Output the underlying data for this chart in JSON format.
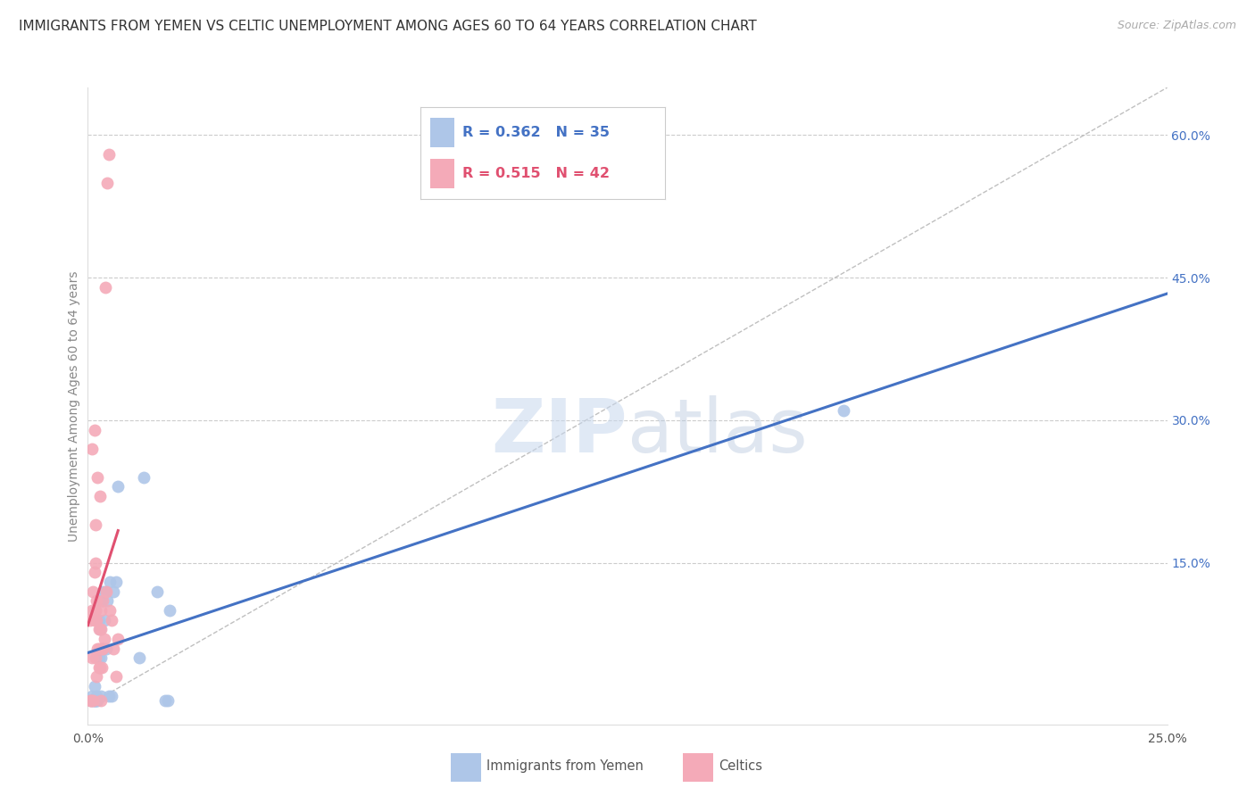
{
  "title": "IMMIGRANTS FROM YEMEN VS CELTIC UNEMPLOYMENT AMONG AGES 60 TO 64 YEARS CORRELATION CHART",
  "source": "Source: ZipAtlas.com",
  "ylabel": "Unemployment Among Ages 60 to 64 years",
  "xlim": [
    0.0,
    0.25
  ],
  "ylim": [
    -0.02,
    0.65
  ],
  "xticks": [
    0.0,
    0.05,
    0.1,
    0.15,
    0.2,
    0.25
  ],
  "xtick_labels": [
    "0.0%",
    "",
    "",
    "",
    "",
    "25.0%"
  ],
  "yticks_right": [
    0.15,
    0.3,
    0.45,
    0.6
  ],
  "ytick_labels_right": [
    "15.0%",
    "30.0%",
    "45.0%",
    "60.0%"
  ],
  "blue_color": "#aec6e8",
  "pink_color": "#f4aab8",
  "blue_line_color": "#4472c4",
  "pink_line_color": "#e05070",
  "blue_R": 0.362,
  "blue_N": 35,
  "pink_R": 0.515,
  "pink_N": 42,
  "legend_label_blue": "Immigrants from Yemen",
  "legend_label_pink": "Celtics",
  "blue_x": [
    0.0008,
    0.001,
    0.0012,
    0.0015,
    0.0015,
    0.0016,
    0.0018,
    0.002,
    0.002,
    0.0022,
    0.0025,
    0.0025,
    0.0028,
    0.003,
    0.003,
    0.0032,
    0.0035,
    0.0035,
    0.0038,
    0.004,
    0.0042,
    0.0045,
    0.0048,
    0.005,
    0.0055,
    0.006,
    0.0065,
    0.007,
    0.012,
    0.013,
    0.016,
    0.018,
    0.0185,
    0.019,
    0.175
  ],
  "blue_y": [
    0.005,
    0.01,
    0.005,
    0.02,
    0.005,
    0.005,
    0.005,
    0.01,
    0.005,
    0.005,
    0.05,
    0.09,
    0.08,
    0.01,
    0.05,
    0.11,
    0.06,
    0.12,
    0.09,
    0.12,
    0.06,
    0.11,
    0.01,
    0.13,
    0.01,
    0.12,
    0.13,
    0.23,
    0.05,
    0.24,
    0.12,
    0.005,
    0.005,
    0.1,
    0.31
  ],
  "pink_x": [
    0.0005,
    0.0005,
    0.0008,
    0.001,
    0.001,
    0.001,
    0.0012,
    0.0012,
    0.0015,
    0.0015,
    0.0015,
    0.0018,
    0.0018,
    0.0018,
    0.0018,
    0.002,
    0.002,
    0.002,
    0.0022,
    0.0022,
    0.0025,
    0.0025,
    0.0025,
    0.0028,
    0.0028,
    0.003,
    0.003,
    0.003,
    0.0032,
    0.0032,
    0.0035,
    0.0035,
    0.0038,
    0.004,
    0.0042,
    0.0045,
    0.0048,
    0.005,
    0.0055,
    0.006,
    0.0065,
    0.007
  ],
  "pink_y": [
    0.005,
    0.09,
    0.005,
    0.1,
    0.05,
    0.27,
    0.005,
    0.12,
    0.09,
    0.14,
    0.29,
    0.05,
    0.1,
    0.15,
    0.19,
    0.03,
    0.09,
    0.11,
    0.06,
    0.24,
    0.04,
    0.06,
    0.08,
    0.04,
    0.22,
    0.005,
    0.08,
    0.1,
    0.04,
    0.06,
    0.06,
    0.11,
    0.07,
    0.44,
    0.12,
    0.55,
    0.58,
    0.1,
    0.09,
    0.06,
    0.03,
    0.07
  ],
  "background_color": "#ffffff",
  "grid_color": "#cccccc",
  "title_fontsize": 11,
  "label_fontsize": 10,
  "tick_fontsize": 10,
  "right_tick_color": "#4472c4",
  "axis_label_color": "#888888"
}
